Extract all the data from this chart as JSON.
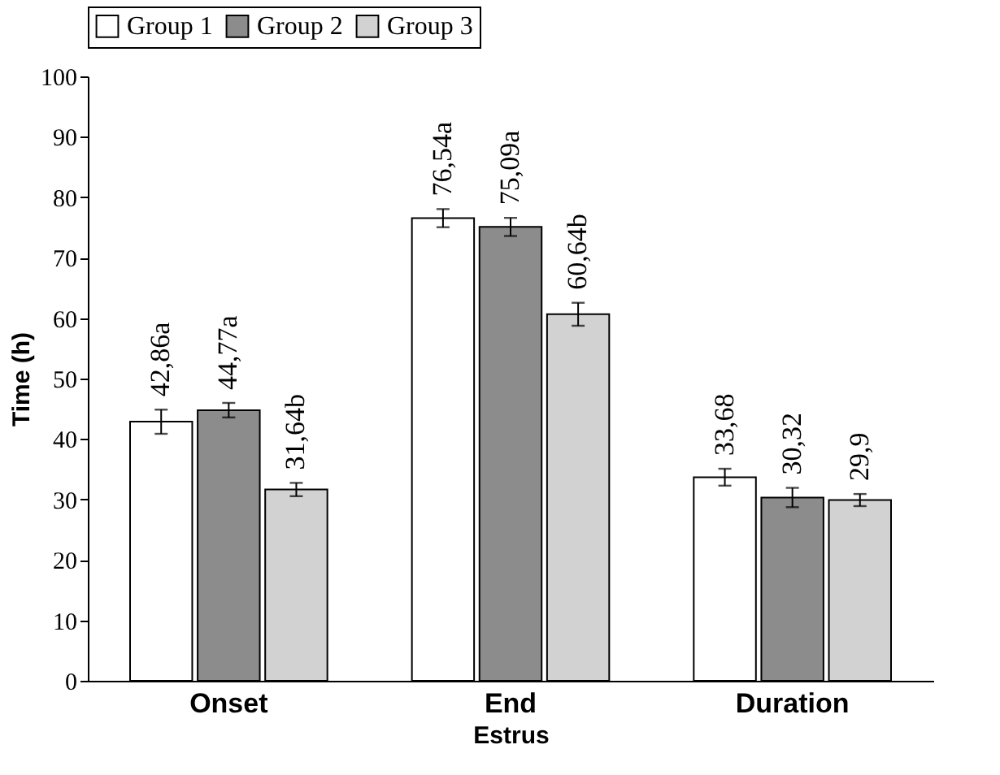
{
  "chart_data": {
    "type": "bar",
    "xlabel": "Estrus",
    "ylabel": "Time (h)",
    "categories": [
      "Onset",
      "End",
      "Duration"
    ],
    "series": [
      {
        "name": "Group 1",
        "color": "#ffffff",
        "values": [
          42.86,
          76.54,
          33.68
        ],
        "errors": [
          2,
          1.5,
          1.4
        ],
        "value_labels": [
          "42,86a",
          "76,54a",
          "33,68"
        ]
      },
      {
        "name": "Group 2",
        "color": "#8c8c8c",
        "values": [
          44.77,
          75.09,
          30.32
        ],
        "errors": [
          1.2,
          1.5,
          1.6
        ],
        "value_labels": [
          "44,77a",
          "75,09a",
          "30,32"
        ]
      },
      {
        "name": "Group 3",
        "color": "#d2d2d2",
        "values": [
          31.64,
          60.64,
          29.9
        ],
        "errors": [
          1.1,
          1.9,
          1.0
        ],
        "value_labels": [
          "31,64b",
          "60,64b",
          "29,9"
        ]
      }
    ],
    "ylim": [
      0,
      100
    ],
    "yticks": [
      0,
      10,
      20,
      30,
      40,
      50,
      60,
      70,
      80,
      90,
      100
    ],
    "grid": false,
    "legend": "top"
  }
}
